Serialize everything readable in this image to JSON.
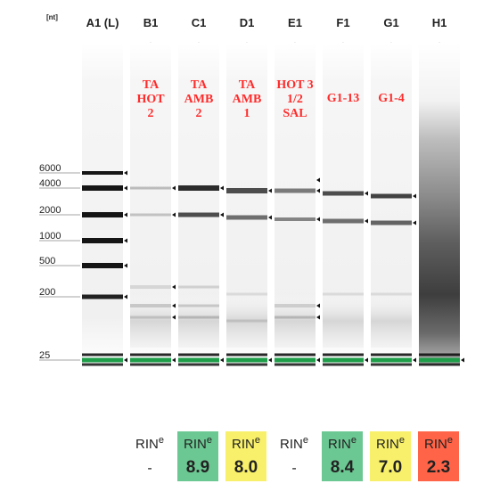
{
  "unit_label": "[nt]",
  "ladder_labels": [
    "6000",
    "4000",
    "2000",
    "1000",
    "500",
    "200",
    "25"
  ],
  "lanes": [
    {
      "id": "A1 (L)",
      "warning": null,
      "sample": [],
      "rin": null,
      "rin_color": null
    },
    {
      "id": "B1",
      "warning": "red",
      "sample": [
        "TA",
        "HOT",
        "2"
      ],
      "rin": "-",
      "rin_color": null
    },
    {
      "id": "C1",
      "warning": "yellow",
      "sample": [
        "TA",
        "AMB",
        "2"
      ],
      "rin": "8.9",
      "rin_color": "#6cc893"
    },
    {
      "id": "D1",
      "warning": "yellow",
      "sample": [
        "TA",
        "AMB",
        "1"
      ],
      "rin": "8.0",
      "rin_color": "#f8f06a"
    },
    {
      "id": "E1",
      "warning": "red",
      "sample": [
        "HOT 3",
        "1/2",
        "SAL"
      ],
      "rin": "-",
      "rin_color": null
    },
    {
      "id": "F1",
      "warning": "yellow",
      "sample": [
        "G1-13"
      ],
      "rin": "8.4",
      "rin_color": "#6cc893"
    },
    {
      "id": "G1",
      "warning": "yellow",
      "sample": [
        "G1-4"
      ],
      "rin": "7.0",
      "rin_color": "#f8f06a"
    },
    {
      "id": "H1",
      "warning": "yellow",
      "sample": [],
      "rin": "2.3",
      "rin_color": "#ff6448"
    }
  ],
  "rin_label": "RIN",
  "rin_superscript": "e",
  "colors": {
    "warning_red": "#e8242a",
    "warning_yellow": "#f4c21b",
    "marker_green": "#1f9e4a",
    "sample_text": "#ff2b2b"
  }
}
